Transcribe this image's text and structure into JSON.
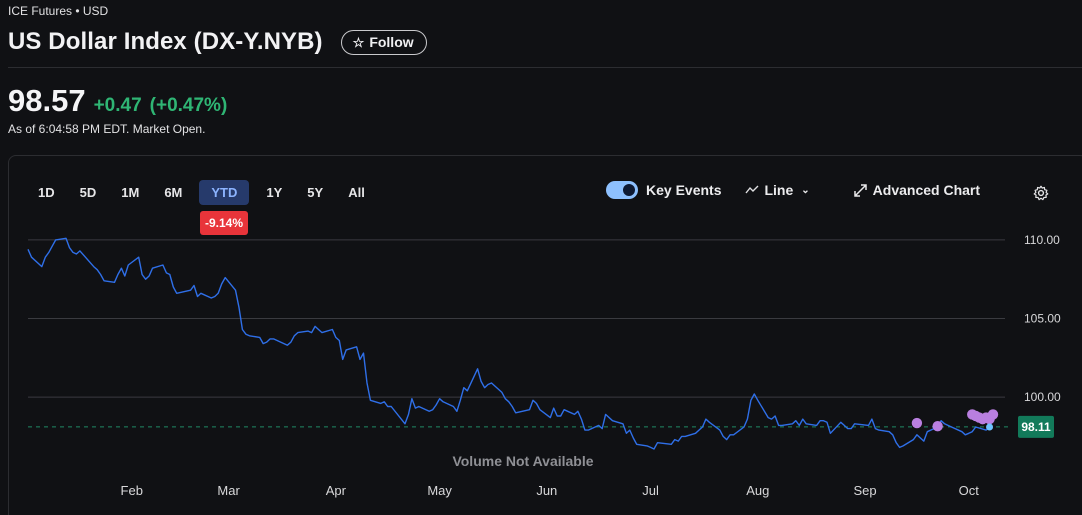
{
  "header": {
    "exchange": "ICE Futures • USD",
    "title": "US Dollar Index (DX-Y.NYB)",
    "follow_label": "Follow"
  },
  "quote": {
    "price": "98.57",
    "change": "+0.47",
    "change_pct": "(+0.47%)",
    "as_of": "As of 6:04:58 PM EDT. Market Open."
  },
  "chart_toolbar": {
    "ranges": [
      "1D",
      "5D",
      "1M",
      "6M",
      "YTD",
      "1Y",
      "5Y",
      "All"
    ],
    "active_range": "YTD",
    "range_change": "-9.14%",
    "key_events_label": "Key Events",
    "key_events_on": true,
    "chart_type_label": "Line",
    "advanced_chart_label": "Advanced Chart"
  },
  "colors": {
    "line": "#2f6fe8",
    "positive": "#2fb574",
    "negative": "#e8343a",
    "event_marker": "#b97fe0",
    "last_price_bg": "#127a5a"
  },
  "chart_data": {
    "type": "line",
    "ylim": [
      96.7,
      111.2
    ],
    "y_ticks": [
      "110.00",
      "105.00",
      "100.00"
    ],
    "y_tick_values": [
      110,
      105,
      100
    ],
    "x_tick_labels": [
      "Feb",
      "Mar",
      "Apr",
      "May",
      "Jun",
      "Jul",
      "Aug",
      "Sep",
      "Oct"
    ],
    "x_tick_dates": [
      "2025-02-01",
      "2025-03-01",
      "2025-04-01",
      "2025-05-01",
      "2025-06-01",
      "2025-07-01",
      "2025-08-01",
      "2025-09-01",
      "2025-10-01"
    ],
    "reference_value": 98.11,
    "reference_label": "98.11",
    "volume_note": "Volume Not Available",
    "series": [
      {
        "dates": [
          "2025-01-02",
          "2025-01-03",
          "2025-01-06",
          "2025-01-07",
          "2025-01-08",
          "2025-01-09",
          "2025-01-10",
          "2025-01-13",
          "2025-01-14",
          "2025-01-15",
          "2025-01-16",
          "2025-01-17",
          "2025-01-21",
          "2025-01-22",
          "2025-01-23",
          "2025-01-24",
          "2025-01-27",
          "2025-01-28",
          "2025-01-29",
          "2025-01-30",
          "2025-01-31",
          "2025-02-03",
          "2025-02-04",
          "2025-02-05",
          "2025-02-06",
          "2025-02-07",
          "2025-02-10",
          "2025-02-11",
          "2025-02-12",
          "2025-02-13",
          "2025-02-14",
          "2025-02-18",
          "2025-02-19",
          "2025-02-20",
          "2025-02-21",
          "2025-02-24",
          "2025-02-25",
          "2025-02-26",
          "2025-02-27",
          "2025-02-28",
          "2025-03-03",
          "2025-03-04",
          "2025-03-05",
          "2025-03-06",
          "2025-03-07",
          "2025-03-10",
          "2025-03-11",
          "2025-03-12",
          "2025-03-13",
          "2025-03-14",
          "2025-03-17",
          "2025-03-18",
          "2025-03-19",
          "2025-03-20",
          "2025-03-21",
          "2025-03-24",
          "2025-03-25",
          "2025-03-26",
          "2025-03-27",
          "2025-03-28",
          "2025-03-31",
          "2025-04-01",
          "2025-04-02",
          "2025-04-03",
          "2025-04-04",
          "2025-04-07",
          "2025-04-08",
          "2025-04-09",
          "2025-04-10",
          "2025-04-11",
          "2025-04-14",
          "2025-04-15",
          "2025-04-16",
          "2025-04-17",
          "2025-04-21",
          "2025-04-22",
          "2025-04-23",
          "2025-04-24",
          "2025-04-25",
          "2025-04-28",
          "2025-04-29",
          "2025-04-30",
          "2025-05-01",
          "2025-05-02",
          "2025-05-05",
          "2025-05-06",
          "2025-05-07",
          "2025-05-08",
          "2025-05-09",
          "2025-05-12",
          "2025-05-13",
          "2025-05-14",
          "2025-05-15",
          "2025-05-16",
          "2025-05-19",
          "2025-05-20",
          "2025-05-21",
          "2025-05-22",
          "2025-05-23",
          "2025-05-27",
          "2025-05-28",
          "2025-05-29",
          "2025-05-30",
          "2025-06-02",
          "2025-06-03",
          "2025-06-04",
          "2025-06-05",
          "2025-06-06",
          "2025-06-09",
          "2025-06-10",
          "2025-06-11",
          "2025-06-12",
          "2025-06-13",
          "2025-06-16",
          "2025-06-17",
          "2025-06-18",
          "2025-06-20",
          "2025-06-23",
          "2025-06-24",
          "2025-06-25",
          "2025-06-26",
          "2025-06-27",
          "2025-06-30",
          "2025-07-01",
          "2025-07-02",
          "2025-07-03",
          "2025-07-07",
          "2025-07-08",
          "2025-07-09",
          "2025-07-10",
          "2025-07-11",
          "2025-07-14",
          "2025-07-15",
          "2025-07-16",
          "2025-07-17",
          "2025-07-18",
          "2025-07-21",
          "2025-07-22",
          "2025-07-23",
          "2025-07-24",
          "2025-07-25",
          "2025-07-28",
          "2025-07-29",
          "2025-07-30",
          "2025-07-31",
          "2025-08-01",
          "2025-08-04",
          "2025-08-05",
          "2025-08-06",
          "2025-08-07",
          "2025-08-08",
          "2025-08-11",
          "2025-08-12",
          "2025-08-13",
          "2025-08-14",
          "2025-08-15",
          "2025-08-18",
          "2025-08-19",
          "2025-08-20",
          "2025-08-21",
          "2025-08-22",
          "2025-08-25",
          "2025-08-26",
          "2025-08-27",
          "2025-08-28",
          "2025-08-29",
          "2025-09-02",
          "2025-09-03",
          "2025-09-04",
          "2025-09-05",
          "2025-09-08",
          "2025-09-09",
          "2025-09-10",
          "2025-09-11",
          "2025-09-12",
          "2025-09-15",
          "2025-09-16",
          "2025-09-17",
          "2025-09-18",
          "2025-09-19",
          "2025-09-22",
          "2025-09-23",
          "2025-09-24",
          "2025-09-25",
          "2025-09-26",
          "2025-09-29",
          "2025-09-30",
          "2025-10-01",
          "2025-10-02",
          "2025-10-03",
          "2025-10-06",
          "2025-10-07"
        ],
        "values": [
          109.4,
          108.9,
          108.3,
          108.9,
          109.2,
          109.6,
          110.0,
          110.1,
          109.5,
          109.2,
          109.1,
          109.3,
          108.3,
          108.1,
          107.8,
          107.4,
          107.3,
          107.8,
          108.2,
          107.7,
          108.4,
          108.9,
          107.8,
          107.5,
          107.7,
          108.2,
          108.4,
          107.9,
          107.8,
          107.0,
          106.6,
          106.8,
          107.1,
          106.4,
          106.6,
          106.3,
          106.4,
          106.6,
          107.2,
          107.6,
          106.8,
          105.7,
          104.3,
          104.0,
          103.9,
          103.8,
          103.4,
          103.5,
          103.7,
          103.7,
          103.4,
          103.3,
          103.5,
          103.9,
          104.1,
          104.2,
          104.1,
          104.5,
          104.3,
          104.1,
          104.3,
          103.8,
          103.6,
          102.4,
          103.0,
          103.2,
          102.4,
          102.8,
          100.9,
          99.8,
          99.6,
          99.7,
          99.4,
          99.4,
          98.3,
          98.9,
          99.9,
          99.3,
          99.4,
          99.1,
          99.2,
          99.5,
          99.9,
          99.7,
          99.4,
          99.1,
          99.8,
          100.6,
          100.4,
          101.8,
          101.0,
          100.6,
          100.8,
          100.9,
          100.3,
          99.9,
          99.7,
          99.4,
          99.0,
          99.2,
          99.8,
          99.6,
          99.2,
          98.7,
          99.3,
          98.8,
          98.8,
          99.2,
          98.9,
          99.1,
          98.6,
          97.9,
          97.9,
          98.2,
          98.0,
          98.9,
          98.5,
          98.3,
          97.7,
          97.9,
          97.4,
          97.0,
          96.9,
          96.8,
          96.7,
          97.1,
          97.0,
          97.3,
          97.2,
          97.5,
          97.5,
          97.7,
          97.9,
          98.1,
          98.6,
          98.4,
          97.9,
          97.5,
          97.3,
          97.6,
          97.6,
          98.1,
          98.6,
          99.8,
          100.2,
          99.8,
          98.7,
          98.6,
          98.8,
          98.2,
          98.2,
          98.3,
          98.5,
          98.2,
          98.6,
          98.3,
          98.2,
          98.5,
          98.5,
          98.4,
          97.7,
          98.4,
          98.2,
          98.0,
          98.0,
          98.3,
          98.2,
          98.6,
          98.0,
          97.9,
          97.8,
          97.6,
          97.1,
          96.8,
          96.9,
          97.3,
          97.6,
          97.4,
          97.2,
          97.8,
          98.1,
          98.5,
          98.3,
          98.2,
          98.1,
          97.8,
          97.6,
          97.7,
          97.8,
          98.1,
          97.9,
          98.1
        ]
      }
    ],
    "events": [
      {
        "date": "2025-09-16",
        "value": 98.35
      },
      {
        "date": "2025-09-22",
        "value": 98.15
      },
      {
        "date": "2025-10-02",
        "value": 98.9
      },
      {
        "date": "2025-10-03",
        "value": 98.8
      },
      {
        "date": "2025-10-04",
        "value": 98.7
      },
      {
        "date": "2025-10-05",
        "value": 98.6
      },
      {
        "date": "2025-10-06",
        "value": 98.7
      },
      {
        "date": "2025-10-07",
        "value": 98.6
      },
      {
        "date": "2025-10-08",
        "value": 98.9
      }
    ]
  }
}
